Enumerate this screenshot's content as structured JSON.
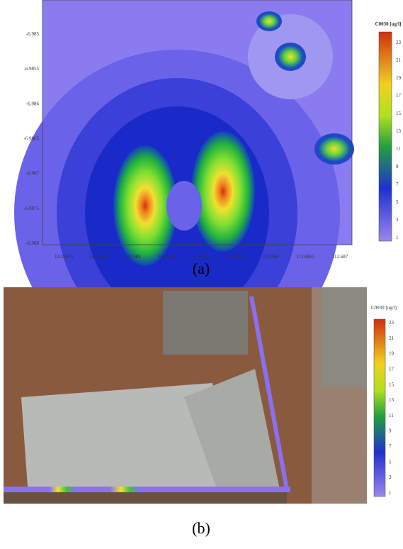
{
  "panels": [
    {
      "caption": "(a)",
      "colorbar_title": "C0030 [ug/l]",
      "colorbar_ticks": [
        "23",
        "21",
        "19",
        "17",
        "15",
        "13",
        "11",
        "9",
        "7",
        "5",
        "3",
        "1"
      ],
      "y_tick_labels": [
        "-6.985",
        "-6.9855",
        "-6.986",
        "-6.9865",
        "-6.987",
        "-6.9875",
        "-6.988"
      ],
      "x_tick_labels": [
        "112.6835",
        "112.6836",
        "112.684",
        "112.6845",
        "112.685",
        "112.6855",
        "112.686",
        "112.6865",
        "112.687"
      ]
    },
    {
      "caption": "(b)",
      "colorbar_title": "C0030 [ug/l]",
      "colorbar_ticks": [
        "23",
        "21",
        "19",
        "17",
        "15",
        "13",
        "11",
        "9",
        "7",
        "5",
        "3",
        "1"
      ]
    }
  ]
}
